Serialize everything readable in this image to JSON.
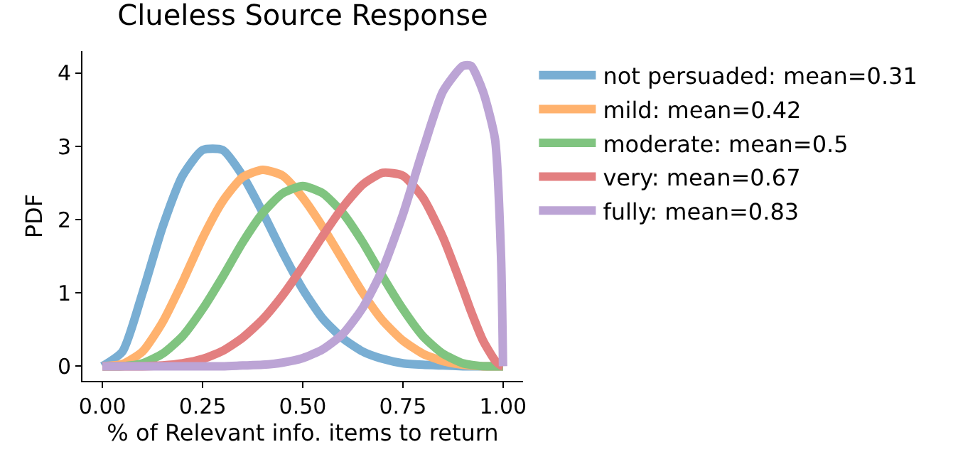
{
  "chart_data": {
    "type": "line",
    "title": "Clueless Source Response",
    "xlabel": "% of Relevant info. items to return",
    "ylabel": "PDF",
    "xlim": [
      -0.05,
      1.05
    ],
    "xticks": [
      {
        "value": 0,
        "label": "0.00"
      },
      {
        "value": 0.25,
        "label": "0.25"
      },
      {
        "value": 0.5,
        "label": "0.50"
      },
      {
        "value": 0.75,
        "label": "0.75"
      },
      {
        "value": 1,
        "label": "1.00"
      }
    ],
    "ylim": [
      -0.2,
      4.3
    ],
    "yticks": [
      0,
      1,
      2,
      3,
      4
    ],
    "legend": "right",
    "marker": "none",
    "line_style": "solid",
    "x": [
      0,
      0.05,
      0.1,
      0.15,
      0.2,
      0.25,
      0.3,
      0.35,
      0.4,
      0.45,
      0.5,
      0.55,
      0.6,
      0.65,
      0.7,
      0.75,
      0.8,
      0.85,
      0.9,
      0.92,
      0.95,
      0.98,
      0.995,
      1
    ],
    "series": [
      {
        "name": "not persuaded: mean=0.31",
        "color": "#79aed3",
        "values": [
          0,
          0.2,
          1.0,
          1.9,
          2.6,
          2.95,
          2.95,
          2.6,
          2.1,
          1.55,
          1.05,
          0.65,
          0.38,
          0.2,
          0.1,
          0.04,
          0.02,
          0.01,
          0,
          0,
          0,
          0,
          0,
          0
        ]
      },
      {
        "name": "mild: mean=0.42",
        "color": "#ffb26e",
        "values": [
          0,
          0.03,
          0.2,
          0.6,
          1.15,
          1.75,
          2.25,
          2.58,
          2.68,
          2.6,
          2.3,
          1.9,
          1.45,
          1.0,
          0.62,
          0.35,
          0.17,
          0.07,
          0.02,
          0.01,
          0,
          0,
          0,
          0
        ]
      },
      {
        "name": "moderate: mean=0.5",
        "color": "#80c480",
        "values": [
          0,
          0,
          0.04,
          0.17,
          0.41,
          0.78,
          1.22,
          1.69,
          2.09,
          2.36,
          2.46,
          2.36,
          2.09,
          1.69,
          1.22,
          0.78,
          0.41,
          0.17,
          0.04,
          0.02,
          0,
          0,
          0,
          0
        ]
      },
      {
        "name": "very: mean=0.67",
        "color": "#e37f80",
        "values": [
          0,
          0,
          0,
          0.01,
          0.04,
          0.1,
          0.21,
          0.39,
          0.64,
          0.97,
          1.36,
          1.78,
          2.17,
          2.48,
          2.64,
          2.6,
          2.3,
          1.76,
          1.05,
          0.75,
          0.35,
          0.08,
          0.01,
          0
        ]
      },
      {
        "name": "fully: mean=0.83",
        "color": "#bca4d5",
        "values": [
          0,
          0,
          0,
          0,
          0,
          0,
          0,
          0.01,
          0.02,
          0.05,
          0.11,
          0.23,
          0.44,
          0.8,
          1.33,
          2.07,
          2.95,
          3.75,
          4.1,
          4.1,
          3.75,
          3.1,
          1.5,
          0
        ]
      }
    ]
  }
}
